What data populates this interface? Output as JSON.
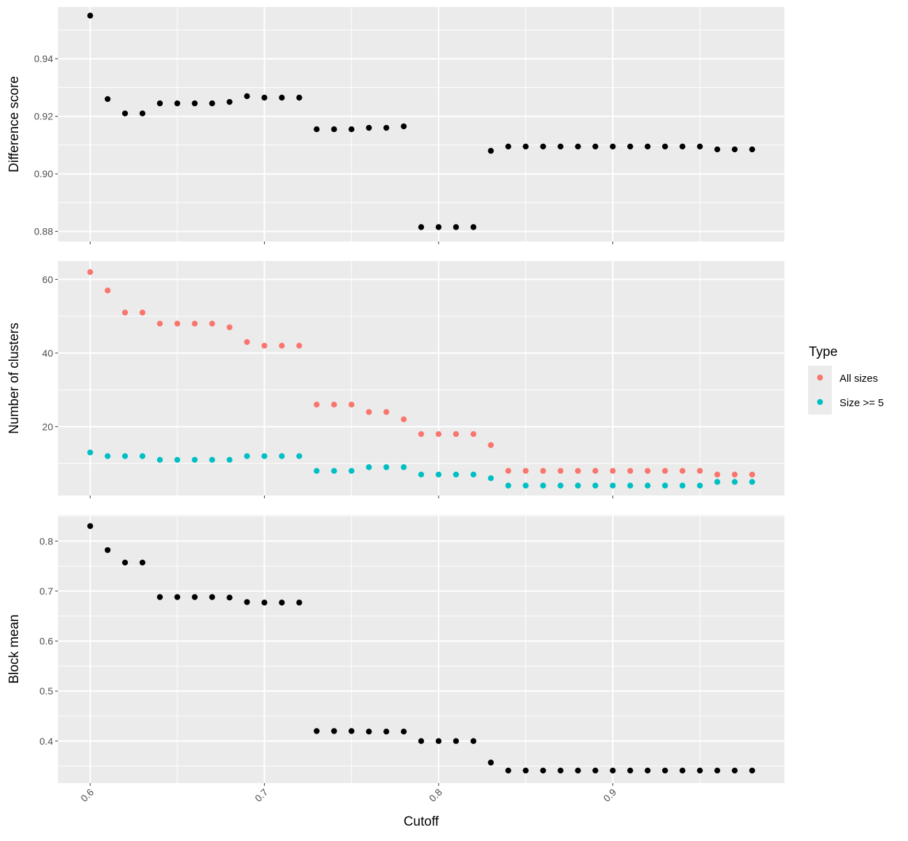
{
  "chart_data": {
    "type": "scatter",
    "xlabel": "Cutoff",
    "x_ticks": [
      "0.6",
      "0.7",
      "0.8",
      "0.9"
    ],
    "x_tick_values": [
      0.6,
      0.7,
      0.8,
      0.9
    ],
    "xlim": [
      0.5815,
      0.9985
    ],
    "x": [
      0.6,
      0.61,
      0.62,
      0.63,
      0.64,
      0.65,
      0.66,
      0.67,
      0.68,
      0.69,
      0.7,
      0.71,
      0.72,
      0.73,
      0.74,
      0.75,
      0.76,
      0.77,
      0.78,
      0.79,
      0.8,
      0.81,
      0.82,
      0.83,
      0.84,
      0.85,
      0.86,
      0.87,
      0.88,
      0.89,
      0.9,
      0.91,
      0.92,
      0.93,
      0.94,
      0.95,
      0.96,
      0.97,
      0.98
    ],
    "grid": true,
    "panels": [
      {
        "ylabel": "Difference score",
        "ylim": [
          0.8765,
          0.958
        ],
        "y_ticks": [
          "0.88",
          "0.90",
          "0.92",
          "0.94"
        ],
        "y_tick_values": [
          0.88,
          0.9,
          0.92,
          0.94
        ],
        "series": [
          {
            "color": "#000000",
            "values": [
              0.955,
              0.926,
              0.921,
              0.921,
              0.9245,
              0.9245,
              0.9245,
              0.9245,
              0.925,
              0.927,
              0.9265,
              0.9265,
              0.9265,
              0.9155,
              0.9155,
              0.9155,
              0.916,
              0.916,
              0.9165,
              0.8815,
              0.8815,
              0.8815,
              0.8815,
              0.908,
              0.9095,
              0.9095,
              0.9095,
              0.9095,
              0.9095,
              0.9095,
              0.9095,
              0.9095,
              0.9095,
              0.9095,
              0.9095,
              0.9095,
              0.9085,
              0.9085,
              0.9085
            ]
          }
        ]
      },
      {
        "ylabel": "Number of clusters",
        "ylim": [
          1.3,
          65.0
        ],
        "y_ticks": [
          "20",
          "40",
          "60"
        ],
        "y_tick_values": [
          20,
          40,
          60
        ],
        "series": [
          {
            "name": "All sizes",
            "color": "#F8766D",
            "values": [
              62,
              57,
              51,
              51,
              48,
              48,
              48,
              48,
              47,
              43,
              42,
              42,
              42,
              26,
              26,
              26,
              24,
              24,
              22,
              18,
              18,
              18,
              18,
              15,
              8,
              8,
              8,
              8,
              8,
              8,
              8,
              8,
              8,
              8,
              8,
              8,
              7,
              7,
              7
            ]
          },
          {
            "name": "Size >= 5",
            "color": "#00BFC4",
            "values": [
              13,
              12,
              12,
              12,
              11,
              11,
              11,
              11,
              11,
              12,
              12,
              12,
              12,
              8,
              8,
              8,
              9,
              9,
              9,
              7,
              7,
              7,
              7,
              6,
              4,
              4,
              4,
              4,
              4,
              4,
              4,
              4,
              4,
              4,
              4,
              4,
              5,
              5,
              5
            ]
          }
        ]
      },
      {
        "ylabel": "Block mean",
        "ylim": [
          0.316,
          0.852
        ],
        "y_ticks": [
          "0.4",
          "0.5",
          "0.6",
          "0.7",
          "0.8"
        ],
        "y_tick_values": [
          0.4,
          0.5,
          0.6,
          0.7,
          0.8
        ],
        "series": [
          {
            "color": "#000000",
            "values": [
              0.83,
              0.782,
              0.757,
              0.757,
              0.688,
              0.688,
              0.688,
              0.688,
              0.687,
              0.678,
              0.677,
              0.677,
              0.677,
              0.42,
              0.42,
              0.42,
              0.419,
              0.419,
              0.419,
              0.4,
              0.4,
              0.4,
              0.4,
              0.357,
              0.341,
              0.341,
              0.341,
              0.341,
              0.341,
              0.341,
              0.341,
              0.341,
              0.341,
              0.341,
              0.341,
              0.341,
              0.341,
              0.341,
              0.341
            ]
          }
        ]
      }
    ],
    "legend": {
      "title": "Type",
      "position": "right",
      "entries": [
        {
          "label": "All sizes",
          "color": "#F8766D"
        },
        {
          "label": "Size >= 5",
          "color": "#00BFC4"
        }
      ]
    }
  }
}
